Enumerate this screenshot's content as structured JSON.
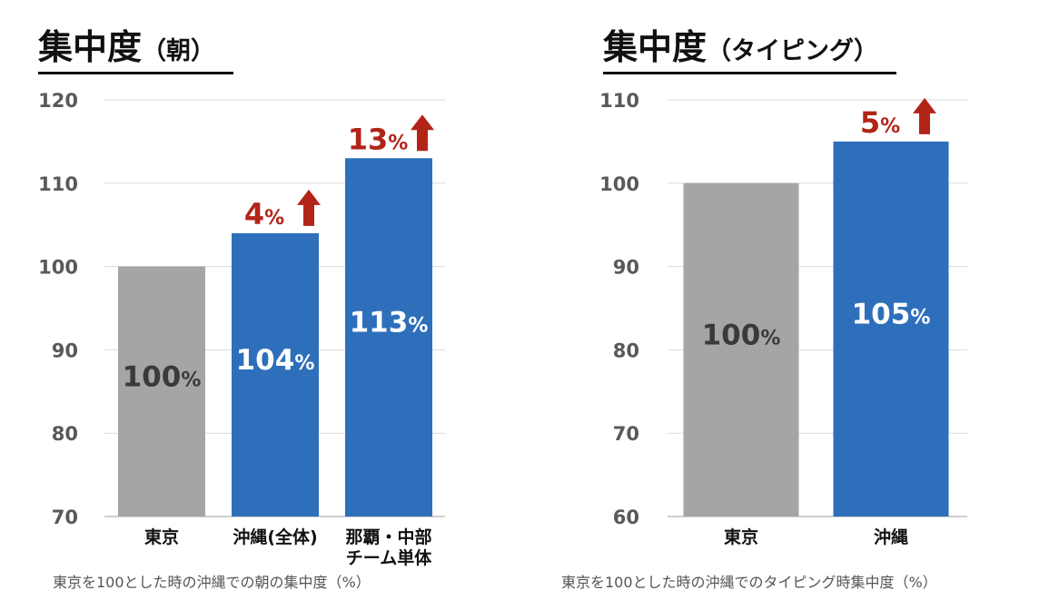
{
  "chart_data": [
    {
      "type": "bar",
      "title": "集中度",
      "title_sub": "（朝）",
      "caption": "東京を100とした時の沖縄での朝の集中度（%）",
      "categories": [
        [
          "東京"
        ],
        [
          "沖縄(全体)"
        ],
        [
          "那覇・中部",
          "チーム単体"
        ]
      ],
      "values": [
        100,
        104,
        113
      ],
      "value_labels": [
        "100",
        "104",
        "113"
      ],
      "value_suffix": "%",
      "colors": [
        "#a5a5a5",
        "#2e6fbb",
        "#2e6fbb"
      ],
      "value_text_colors": [
        "#3a3a3a",
        "#ffffff",
        "#ffffff"
      ],
      "gains": [
        null,
        "4",
        "13"
      ],
      "ylim": [
        70,
        120
      ],
      "yticks": [
        "70",
        "80",
        "90",
        "100",
        "110",
        "120"
      ],
      "grid": true,
      "accent_color": "#b22418"
    },
    {
      "type": "bar",
      "title": "集中度",
      "title_sub": "（タイピング）",
      "caption": "東京を100とした時の沖縄でのタイピング時集中度（%）",
      "categories": [
        [
          "東京"
        ],
        [
          "沖縄"
        ]
      ],
      "values": [
        100,
        105
      ],
      "value_labels": [
        "100",
        "105"
      ],
      "value_suffix": "%",
      "colors": [
        "#a5a5a5",
        "#2e6fbb"
      ],
      "value_text_colors": [
        "#3a3a3a",
        "#ffffff"
      ],
      "gains": [
        null,
        "5"
      ],
      "ylim": [
        60,
        110
      ],
      "yticks": [
        "60",
        "70",
        "80",
        "90",
        "100",
        "110"
      ],
      "grid": true,
      "accent_color": "#b22418"
    }
  ]
}
